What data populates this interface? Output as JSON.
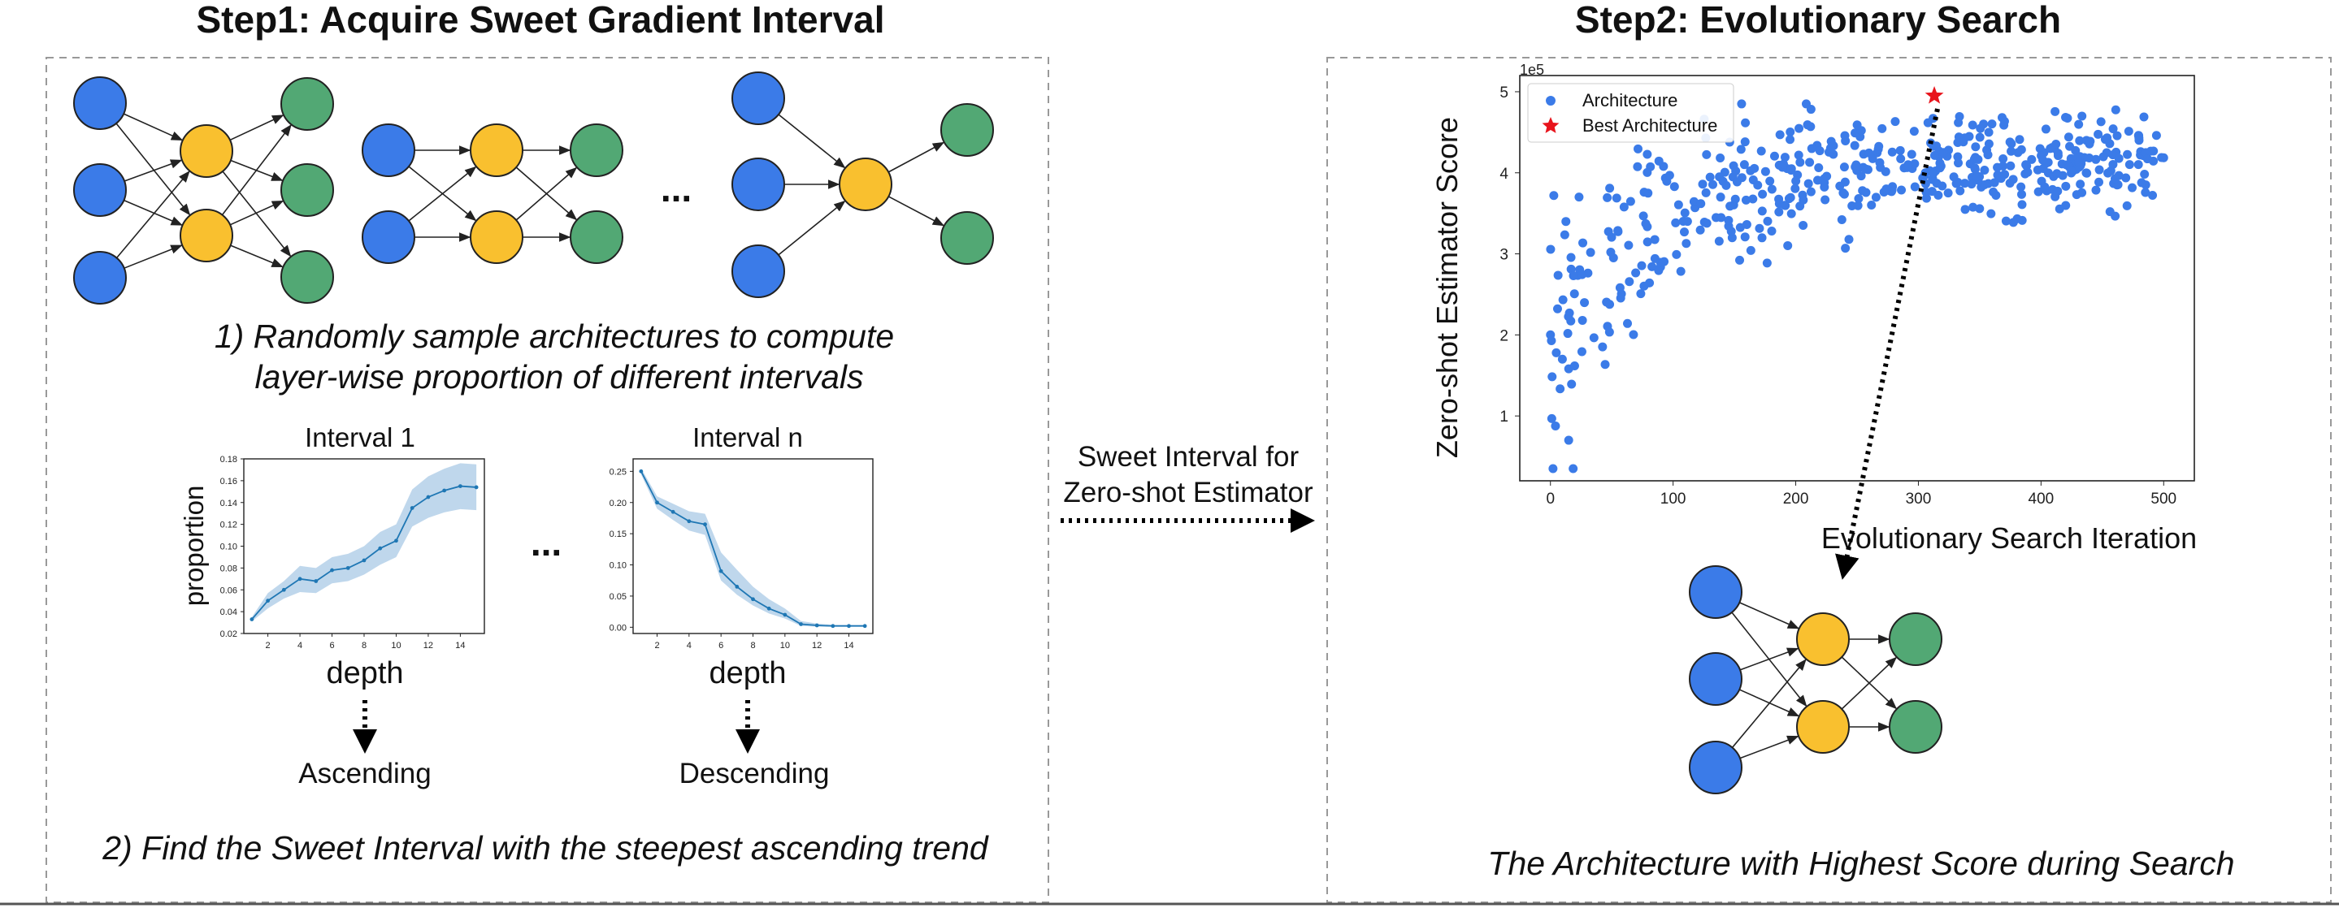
{
  "step1": {
    "title": "Step1: Acquire Sweet Gradient Interval",
    "ellipsis_networks": "...",
    "caption1_line1": "1) Randomly sample architectures to compute",
    "caption1_line2": "layer-wise proportion of different intervals",
    "caption2": "2) Find the Sweet Interval with the steepest ascending trend",
    "ellipsis_charts": "..."
  },
  "middle": {
    "line1": "Sweet Interval for",
    "line2": "Zero-shot Estimator"
  },
  "step2": {
    "title": "Step2: Evolutionary Search",
    "caption": "The Architecture with Highest Score during Search"
  },
  "node_colors": {
    "input": "#3b7be8",
    "hidden": "#f9c02f",
    "output": "#52a874"
  },
  "chart_data": [
    {
      "type": "line",
      "title": "Interval 1",
      "xlabel": "depth",
      "ylabel": "proportion",
      "below_label": "Ascending",
      "x": [
        1,
        2,
        3,
        4,
        5,
        6,
        7,
        8,
        9,
        10,
        11,
        12,
        13,
        14,
        15
      ],
      "y": [
        0.033,
        0.05,
        0.06,
        0.07,
        0.068,
        0.078,
        0.08,
        0.087,
        0.098,
        0.105,
        0.135,
        0.145,
        0.151,
        0.155,
        0.154
      ],
      "band_lower": [
        0.031,
        0.043,
        0.052,
        0.058,
        0.057,
        0.066,
        0.068,
        0.074,
        0.083,
        0.09,
        0.118,
        0.126,
        0.131,
        0.134,
        0.133
      ],
      "band_upper": [
        0.035,
        0.057,
        0.068,
        0.082,
        0.08,
        0.09,
        0.093,
        0.1,
        0.113,
        0.12,
        0.152,
        0.164,
        0.171,
        0.176,
        0.175
      ],
      "xticks": [
        2,
        4,
        6,
        8,
        10,
        12,
        14
      ],
      "yticks": [
        0.02,
        0.04,
        0.06,
        0.08,
        0.1,
        0.12,
        0.14,
        0.16,
        0.18
      ],
      "ylim": [
        0.02,
        0.18
      ],
      "xlim": [
        0.5,
        15.5
      ],
      "color": "#1f77b4"
    },
    {
      "type": "line",
      "title": "Interval n",
      "xlabel": "depth",
      "ylabel": "",
      "below_label": "Descending",
      "x": [
        1,
        2,
        3,
        4,
        5,
        6,
        7,
        8,
        9,
        10,
        11,
        12,
        13,
        14,
        15
      ],
      "y": [
        0.25,
        0.2,
        0.185,
        0.17,
        0.165,
        0.09,
        0.065,
        0.045,
        0.03,
        0.02,
        0.005,
        0.003,
        0.002,
        0.002,
        0.002
      ],
      "band_lower": [
        0.245,
        0.19,
        0.172,
        0.155,
        0.148,
        0.075,
        0.052,
        0.035,
        0.022,
        0.014,
        0.002,
        0.001,
        0.001,
        0.001,
        0.001
      ],
      "band_upper": [
        0.255,
        0.21,
        0.198,
        0.186,
        0.182,
        0.12,
        0.092,
        0.065,
        0.045,
        0.03,
        0.01,
        0.006,
        0.004,
        0.004,
        0.004
      ],
      "xticks": [
        2,
        4,
        6,
        8,
        10,
        12,
        14
      ],
      "yticks": [
        0.0,
        0.05,
        0.1,
        0.15,
        0.2,
        0.25
      ],
      "ylim": [
        -0.01,
        0.27
      ],
      "xlim": [
        0.5,
        15.5
      ],
      "color": "#1f77b4"
    },
    {
      "type": "scatter",
      "title": "",
      "xlabel": "Evolutionary Search Iteration",
      "ylabel": "Zero-shot Estimator Score",
      "y_multiplier": "1e5",
      "xticks": [
        0,
        100,
        200,
        300,
        400,
        500
      ],
      "yticks": [
        1,
        2,
        3,
        4,
        5
      ],
      "xlim": [
        -25,
        525
      ],
      "ylim": [
        0.2,
        5.2
      ],
      "legend": [
        "Architecture",
        "Best Architecture"
      ],
      "legend_position": "top-left",
      "series_color": "#3b7be8",
      "best": {
        "x": 313,
        "y": 4.95,
        "color": "#e8141c"
      }
    }
  ]
}
